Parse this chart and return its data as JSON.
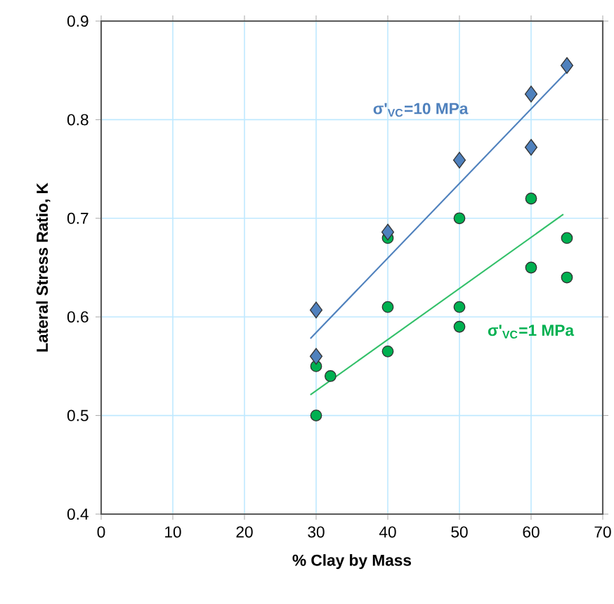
{
  "chart_data": {
    "type": "scatter",
    "xlabel": "% Clay by Mass",
    "ylabel": "Lateral Stress Ratio, K",
    "xlim": [
      0,
      70
    ],
    "xticks": [
      0,
      10,
      20,
      30,
      40,
      50,
      60,
      70
    ],
    "ylim": [
      0.4,
      0.9
    ],
    "yticks": [
      {
        "value": 0.4,
        "label": "0.4"
      },
      {
        "value": 0.5,
        "label": "0.5"
      },
      {
        "value": 0.6,
        "label": "0.6"
      },
      {
        "value": 0.7,
        "label": "0.7"
      },
      {
        "value": 0.8,
        "label": "0.8"
      },
      {
        "value": 0.9,
        "label": "0.9"
      }
    ],
    "grid": true,
    "series": [
      {
        "name": "σ'$_{VC}$=1 MPa",
        "marker": "circle",
        "color": "#00b050",
        "x": [
          30,
          30,
          32,
          40,
          40,
          40,
          50,
          50,
          50,
          60,
          60,
          65,
          65
        ],
        "values": [
          0.55,
          0.5,
          0.54,
          0.68,
          0.61,
          0.565,
          0.7,
          0.61,
          0.59,
          0.72,
          0.65,
          0.68,
          0.64
        ]
      },
      {
        "name": "σ'$_{VC}$=10 MPa",
        "marker": "diamond",
        "color": "#4f81bd",
        "x": [
          30,
          30,
          40,
          50,
          60,
          60,
          65
        ],
        "values": [
          0.607,
          0.56,
          0.686,
          0.759,
          0.826,
          0.772,
          0.855
        ]
      },
      {
        "type": "line",
        "color": "#4f81bd",
        "x": [
          29.2,
          64.9
        ],
        "values": [
          0.578,
          0.848
        ]
      },
      {
        "type": "line",
        "color": "#33c06a",
        "x": [
          29.2,
          64.5
        ],
        "values": [
          0.521,
          0.704
        ]
      }
    ]
  }
}
